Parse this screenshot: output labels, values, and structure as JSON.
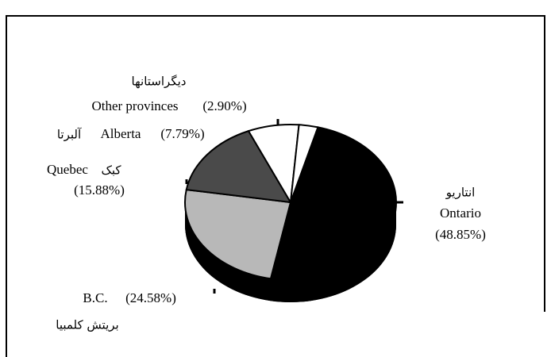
{
  "chart_data": {
    "type": "pie",
    "categories": [
      "Ontario",
      "B.C.",
      "Quebec",
      "Alberta",
      "Other provinces"
    ],
    "categories_fa": [
      "انتاریو",
      "بریتش کلمبیا",
      "کبک",
      "آلبرتا",
      "دیگراستانها"
    ],
    "values": [
      48.85,
      24.58,
      15.88,
      7.79,
      2.9
    ],
    "value_labels": [
      "(48.85%)",
      "(24.58%)",
      "(15.88%)",
      "(7.79%)",
      "(2.90%)"
    ],
    "colors": [
      "#000000",
      "#b8b8b8",
      "#4a4a4a",
      "#ffffff",
      "#ffffff"
    ]
  }
}
